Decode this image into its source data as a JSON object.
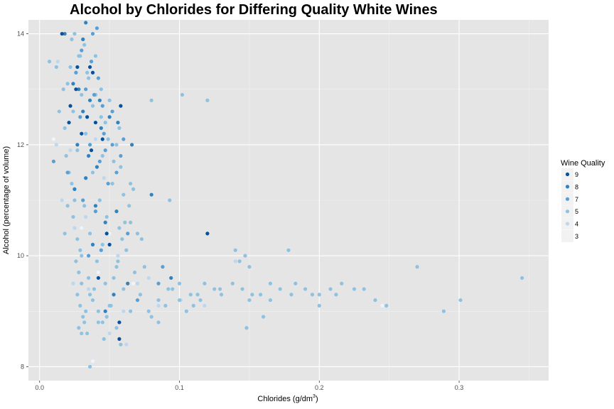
{
  "chart_data": {
    "type": "scatter",
    "title": "Alcohol by Chlorides for Differing Quality White Wines",
    "xlabel": "Chlorides (g/dm",
    "xlabel_sup": "3",
    "xlabel_tail": ")",
    "ylabel": "Alcohol (percentage of volume)",
    "xlim": [
      -0.008,
      0.364
    ],
    "ylim": [
      7.75,
      14.25
    ],
    "x_ticks": [
      0.0,
      0.1,
      0.2,
      0.3
    ],
    "x_tick_labels": [
      "0.0",
      "0.1",
      "0.2",
      "0.3"
    ],
    "y_ticks": [
      8,
      10,
      12,
      14
    ],
    "y_tick_labels": [
      "8",
      "10",
      "12",
      "14"
    ],
    "grid": true,
    "legend": {
      "title": "Wine Quality",
      "placement": "right",
      "entries": [
        {
          "label": "9",
          "color": "#08519c"
        },
        {
          "label": "8",
          "color": "#3182bd"
        },
        {
          "label": "7",
          "color": "#5a9fd4"
        },
        {
          "label": "5",
          "color": "#8fc1e0"
        },
        {
          "label": "4",
          "color": "#bdd7ee"
        },
        {
          "label": "3",
          "color": "#eef4fa"
        }
      ]
    },
    "series": [
      {
        "name": "9",
        "color": "#08519c",
        "points": [
          [
            0.016,
            14.0
          ],
          [
            0.027,
            13.4
          ],
          [
            0.036,
            13.4
          ],
          [
            0.022,
            12.7
          ],
          [
            0.034,
            12.5
          ],
          [
            0.04,
            12.4
          ],
          [
            0.021,
            12.4
          ],
          [
            0.03,
            12.2
          ],
          [
            0.037,
            11.9
          ],
          [
            0.058,
            12.7
          ],
          [
            0.12,
            10.4
          ],
          [
            0.048,
            10.4
          ],
          [
            0.042,
            9.6
          ],
          [
            0.057,
            8.8
          ],
          [
            0.057,
            8.5
          ],
          [
            0.05,
            10.2
          ],
          [
            0.045,
            12.1
          ],
          [
            0.026,
            13.0
          ],
          [
            0.038,
            13.3
          ]
        ]
      },
      {
        "name": "8",
        "color": "#3182bd",
        "points": [
          [
            0.033,
            14.2
          ],
          [
            0.018,
            14.0
          ],
          [
            0.031,
            13.9
          ],
          [
            0.024,
            13.1
          ],
          [
            0.028,
            13.0
          ],
          [
            0.036,
            12.8
          ],
          [
            0.043,
            12.8
          ],
          [
            0.031,
            12.6
          ],
          [
            0.05,
            12.5
          ],
          [
            0.044,
            12.3
          ],
          [
            0.056,
            12.4
          ],
          [
            0.027,
            12.0
          ],
          [
            0.035,
            11.8
          ],
          [
            0.041,
            11.6
          ],
          [
            0.066,
            12.0
          ],
          [
            0.08,
            11.1
          ],
          [
            0.055,
            10.8
          ],
          [
            0.047,
            10.6
          ],
          [
            0.038,
            10.2
          ],
          [
            0.063,
            9.5
          ],
          [
            0.094,
            9.6
          ],
          [
            0.033,
            11.4
          ],
          [
            0.025,
            11.2
          ],
          [
            0.04,
            10.9
          ],
          [
            0.053,
            9.3
          ],
          [
            0.047,
            9.0
          ]
        ]
      },
      {
        "name": "7",
        "color": "#5a9fd4",
        "points": [
          [
            0.038,
            14.0
          ],
          [
            0.041,
            14.1
          ],
          [
            0.03,
            13.7
          ],
          [
            0.037,
            13.5
          ],
          [
            0.026,
            13.3
          ],
          [
            0.042,
            13.2
          ],
          [
            0.033,
            13.0
          ],
          [
            0.039,
            12.9
          ],
          [
            0.045,
            12.7
          ],
          [
            0.052,
            12.6
          ],
          [
            0.029,
            12.5
          ],
          [
            0.046,
            12.2
          ],
          [
            0.06,
            12.1
          ],
          [
            0.036,
            12.0
          ],
          [
            0.043,
            11.7
          ],
          [
            0.055,
            11.5
          ],
          [
            0.049,
            11.3
          ],
          [
            0.031,
            11.0
          ],
          [
            0.04,
            10.8
          ],
          [
            0.063,
            10.4
          ],
          [
            0.044,
            10.1
          ],
          [
            0.035,
            10.0
          ],
          [
            0.088,
            9.8
          ],
          [
            0.07,
            9.2
          ],
          [
            0.085,
            9.5
          ],
          [
            0.01,
            11.7
          ],
          [
            0.02,
            11.5
          ],
          [
            0.047,
            11.9
          ],
          [
            0.052,
            12.0
          ],
          [
            0.058,
            11.8
          ]
        ]
      },
      {
        "name": "5",
        "color": "#8fc1e0",
        "points": [
          [
            0.025,
            14.0
          ],
          [
            0.032,
            13.8
          ],
          [
            0.028,
            13.6
          ],
          [
            0.04,
            13.6
          ],
          [
            0.022,
            13.4
          ],
          [
            0.035,
            13.2
          ],
          [
            0.02,
            13.1
          ],
          [
            0.044,
            13.0
          ],
          [
            0.03,
            12.9
          ],
          [
            0.038,
            12.7
          ],
          [
            0.05,
            12.8
          ],
          [
            0.024,
            12.6
          ],
          [
            0.047,
            12.4
          ],
          [
            0.057,
            12.3
          ],
          [
            0.033,
            12.2
          ],
          [
            0.027,
            11.9
          ],
          [
            0.045,
            11.8
          ],
          [
            0.058,
            11.6
          ],
          [
            0.038,
            11.5
          ],
          [
            0.052,
            11.3
          ],
          [
            0.025,
            11.2
          ],
          [
            0.043,
            11.0
          ],
          [
            0.06,
            11.1
          ],
          [
            0.032,
            10.9
          ],
          [
            0.048,
            10.7
          ],
          [
            0.057,
            10.5
          ],
          [
            0.036,
            10.4
          ],
          [
            0.045,
            10.2
          ],
          [
            0.062,
            10.1
          ],
          [
            0.03,
            10.0
          ],
          [
            0.041,
            9.9
          ],
          [
            0.055,
            9.8
          ],
          [
            0.068,
            9.7
          ],
          [
            0.035,
            9.6
          ],
          [
            0.047,
            9.5
          ],
          [
            0.06,
            9.4
          ],
          [
            0.072,
            9.3
          ],
          [
            0.038,
            9.2
          ],
          [
            0.05,
            9.1
          ],
          [
            0.065,
            9.0
          ],
          [
            0.08,
            8.9
          ],
          [
            0.042,
            8.8
          ],
          [
            0.055,
            8.7
          ],
          [
            0.03,
            8.6
          ],
          [
            0.046,
            8.5
          ],
          [
            0.058,
            8.4
          ],
          [
            0.085,
            9.2
          ],
          [
            0.095,
            9.4
          ],
          [
            0.1,
            9.5
          ],
          [
            0.108,
            9.3
          ],
          [
            0.115,
            9.2
          ],
          [
            0.125,
            9.4
          ],
          [
            0.13,
            9.3
          ],
          [
            0.138,
            9.5
          ],
          [
            0.145,
            9.4
          ],
          [
            0.15,
            9.2
          ],
          [
            0.158,
            9.3
          ],
          [
            0.165,
            9.5
          ],
          [
            0.172,
            9.4
          ],
          [
            0.18,
            9.3
          ],
          [
            0.19,
            9.4
          ],
          [
            0.2,
            9.3
          ],
          [
            0.208,
            9.4
          ],
          [
            0.216,
            9.5
          ],
          [
            0.24,
            9.2
          ],
          [
            0.248,
            9.1
          ],
          [
            0.2,
            9.1
          ],
          [
            0.16,
            8.9
          ],
          [
            0.148,
            8.7
          ],
          [
            0.129,
            9.4
          ],
          [
            0.14,
            10.1
          ],
          [
            0.143,
            9.9
          ],
          [
            0.147,
            10.0
          ],
          [
            0.15,
            9.8
          ],
          [
            0.178,
            10.1
          ],
          [
            0.27,
            9.8
          ],
          [
            0.289,
            9.0
          ],
          [
            0.301,
            9.2
          ],
          [
            0.345,
            9.6
          ],
          [
            0.102,
            12.9
          ],
          [
            0.08,
            12.8
          ],
          [
            0.12,
            12.8
          ],
          [
            0.093,
            11.0
          ],
          [
            0.065,
            10.6
          ],
          [
            0.07,
            10.4
          ],
          [
            0.073,
            10.3
          ],
          [
            0.036,
            8.0
          ],
          [
            0.075,
            9.8
          ],
          [
            0.09,
            9.1
          ],
          [
            0.085,
            8.8
          ],
          [
            0.078,
            9.0
          ],
          [
            0.11,
            9.1
          ],
          [
            0.105,
            9.0
          ],
          [
            0.113,
            9.3
          ],
          [
            0.118,
            9.5
          ],
          [
            0.152,
            9.3
          ],
          [
            0.165,
            9.2
          ],
          [
            0.183,
            9.5
          ],
          [
            0.195,
            9.3
          ],
          [
            0.225,
            9.4
          ],
          [
            0.232,
            9.4
          ],
          [
            0.212,
            9.3
          ],
          [
            0.1,
            9.2
          ],
          [
            0.092,
            9.4
          ],
          [
            0.065,
            11.3
          ],
          [
            0.055,
            12.0
          ],
          [
            0.007,
            13.5
          ],
          [
            0.012,
            13.4
          ],
          [
            0.017,
            13.0
          ],
          [
            0.014,
            12.6
          ],
          [
            0.018,
            12.3
          ],
          [
            0.019,
            11.8
          ],
          [
            0.021,
            11.5
          ],
          [
            0.023,
            11.3
          ],
          [
            0.025,
            11.0
          ],
          [
            0.02,
            10.9
          ],
          [
            0.024,
            10.7
          ],
          [
            0.018,
            10.4
          ],
          [
            0.027,
            10.3
          ],
          [
            0.029,
            10.1
          ],
          [
            0.026,
            9.9
          ],
          [
            0.028,
            9.7
          ],
          [
            0.03,
            9.5
          ],
          [
            0.027,
            9.3
          ],
          [
            0.029,
            9.1
          ],
          [
            0.031,
            8.9
          ],
          [
            0.028,
            8.7
          ],
          [
            0.034,
            8.6
          ],
          [
            0.032,
            8.8
          ],
          [
            0.033,
            9.0
          ],
          [
            0.036,
            9.3
          ],
          [
            0.039,
            9.4
          ],
          [
            0.042,
            9.0
          ],
          [
            0.045,
            8.8
          ],
          [
            0.048,
            8.9
          ],
          [
            0.051,
            9.1
          ],
          [
            0.053,
            9.6
          ],
          [
            0.056,
            9.9
          ],
          [
            0.059,
            10.3
          ],
          [
            0.061,
            10.6
          ],
          [
            0.064,
            10.9
          ],
          [
            0.067,
            11.2
          ],
          [
            0.053,
            11.7
          ],
          [
            0.049,
            12.1
          ],
          [
            0.044,
            12.5
          ],
          [
            0.04,
            12.9
          ],
          [
            0.034,
            13.3
          ],
          [
            0.029,
            13.6
          ],
          [
            0.023,
            13.9
          ]
        ]
      },
      {
        "name": "4",
        "color": "#bdd7ee",
        "points": [
          [
            0.013,
            13.5
          ],
          [
            0.012,
            12.0
          ],
          [
            0.022,
            11.9
          ],
          [
            0.016,
            11.0
          ],
          [
            0.025,
            10.5
          ],
          [
            0.07,
            9.5
          ],
          [
            0.078,
            9.6
          ],
          [
            0.085,
            9.1
          ],
          [
            0.14,
            9.9
          ],
          [
            0.035,
            9.4
          ],
          [
            0.05,
            8.6
          ],
          [
            0.062,
            8.4
          ],
          [
            0.024,
            9.5
          ],
          [
            0.033,
            10.7
          ],
          [
            0.046,
            11.4
          ],
          [
            0.056,
            10.0
          ],
          [
            0.06,
            9.0
          ],
          [
            0.101,
            9.2
          ],
          [
            0.118,
            9.1
          ],
          [
            0.04,
            12.1
          ]
        ]
      },
      {
        "name": "3",
        "color": "#eef4fa",
        "points": [
          [
            0.01,
            12.1
          ],
          [
            0.03,
            10.5
          ],
          [
            0.05,
            10.4
          ],
          [
            0.245,
            9.1
          ],
          [
            0.038,
            8.1
          ],
          [
            0.042,
            9.7
          ],
          [
            0.067,
            9.5
          ]
        ]
      }
    ]
  }
}
